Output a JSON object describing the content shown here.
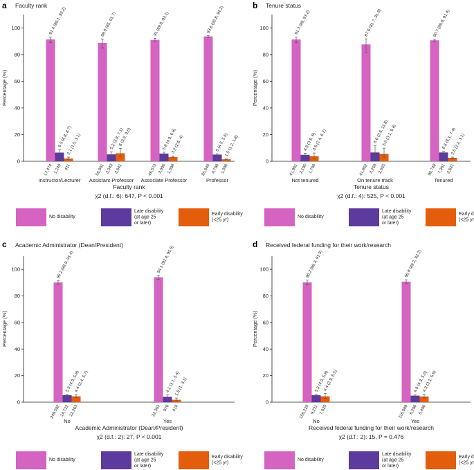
{
  "chart_data": [
    {
      "type": "bar",
      "panel": "a",
      "title": "Faculty rank",
      "ylabel": "Percentage (%)",
      "xlabel": "Faculty rank",
      "stat": "χ2 (d.f.: 6): 647, P < 0.001",
      "ylim": [
        0,
        110
      ],
      "yticks": [
        0,
        20,
        40,
        60,
        80,
        100
      ],
      "categories": [
        "Instructor/Lecturer",
        "Assistant Professor",
        "Associate Professor",
        "Professor"
      ],
      "series": [
        {
          "name": "No disability",
          "values": [
            91.4,
            88.8,
            91.0,
            93.6
          ],
          "err_low": [
            89.1,
            85.0,
            89.8,
            92.8
          ],
          "err_high": [
            93.2,
            91.7,
            92.1,
            94.2
          ],
          "labels": [
            "91.4 (89.1, 93.2)",
            "88.8 (85, 91.7)",
            "91 (89.8, 92.1)",
            "93.6 (92.8, 94.2)"
          ],
          "n": [
            "17,474",
            "56,901",
            "46,573",
            "85,848"
          ]
        },
        {
          "name": "Late disability (at age 25 or later)",
          "values": [
            6.5,
            5.2,
            5.8,
            5.0
          ],
          "err_low": [
            4.8,
            3.8,
            4.9,
            4.5
          ],
          "err_high": [
            8.7,
            7.1,
            6.8,
            5.6
          ],
          "labels": [
            "6.5 (4.8, 8.7)",
            "5.2 (3.8, 7.1)",
            "5.8 (4.9, 6.8)",
            "5 (4.5, 5.6)"
          ],
          "n": [
            "1,240",
            "3,343",
            "3,096",
            "4,790"
          ]
        },
        {
          "name": "Early disability (<25 yr)",
          "values": [
            2.1,
            6.0,
            3.2,
            1.5
          ],
          "err_low": [
            1.5,
            3.6,
            2.6,
            1.2
          ],
          "err_high": [
            3.1,
            9.6,
            4.0,
            1.8
          ],
          "labels": [
            "2.1 (1.5, 3.1)",
            "6 (3.6, 9.6)",
            "3.2 (2.6, 4)",
            "1.5 (1.2, 1.8)"
          ],
          "n": [
            "411",
            "3,841",
            "1,698",
            "1,398"
          ]
        }
      ]
    },
    {
      "type": "bar",
      "panel": "b",
      "title": "Tenure status",
      "ylabel": "Percentage (%)",
      "xlabel": "Tenure status",
      "stat": "χ2 (d.f.: 4): 525, P < 0.001",
      "ylim": [
        0,
        110
      ],
      "yticks": [
        0,
        20,
        40,
        60,
        80,
        100
      ],
      "categories": [
        "Not tenured",
        "On tenure track",
        "Tenured"
      ],
      "series": [
        {
          "name": "No disability",
          "values": [
            91.3,
            87.6,
            90.7
          ],
          "err_low": [
            89.0,
            81.7,
            89.8
          ],
          "err_high": [
            93.2,
            91.8,
            91.4
          ],
          "labels": [
            "91.3 (89, 93.2)",
            "87.6 (81.7, 91.8)",
            "90.7 (89.8, 91.4)"
          ],
          "n": [
            "41,901",
            "41,852",
            "98,748"
          ]
        },
        {
          "name": "Late disability (at age 25 or later)",
          "values": [
            4.8,
            6.6,
            6.6
          ],
          "err_low": [
            3.6,
            3.6,
            6.1
          ],
          "err_high": [
            6.0,
            11.8,
            7.4
          ],
          "labels": [
            "4.8 (3.6, 6)",
            "6.6 (3.6, 11.8)",
            "6.6 (6.1, 7.4)"
          ],
          "n": [
            "2,195",
            "3,250",
            "7,361"
          ]
        },
        {
          "name": "Early disability (<25 yr)",
          "values": [
            3.9,
            5.6,
            2.6
          ],
          "err_low": [
            2.4,
            3.1,
            2.2
          ],
          "err_high": [
            6.2,
            9.8,
            3.1
          ],
          "labels": [
            "3.9 (2.4, 6.2)",
            "5.6 (3.1, 9.8)",
            "2.6 (2.2, 3.1)"
          ],
          "n": [
            "1,790",
            "2,655",
            "2,821"
          ]
        }
      ]
    },
    {
      "type": "bar",
      "panel": "c",
      "title": "Academic Administrator (Dean/President)",
      "ylabel": "Percentage (%)",
      "xlabel": "Academic Administrator (Dean/President)",
      "stat": "χ2 (d.f.: 2): 27, P < 0.001",
      "ylim": [
        0,
        110
      ],
      "yticks": [
        0,
        20,
        40,
        60,
        80,
        100
      ],
      "categories": [
        "No",
        "Yes"
      ],
      "series": [
        {
          "name": "No disability",
          "values": [
            90.2,
            94.1
          ],
          "err_low": [
            88.9,
            92.4
          ],
          "err_high": [
            91.4,
            95.5
          ],
          "labels": [
            "90.2 (88.9, 91.4)",
            "94.1 (92.4, 95.5)"
          ],
          "n": [
            "249,592",
            "22,363"
          ]
        },
        {
          "name": "Late disability (at age 25 or later)",
          "values": [
            5.3,
            4.1
          ],
          "err_low": [
            4.9,
            3.1
          ],
          "err_high": [
            5.8,
            5.4
          ],
          "labels": [
            "5.3 (4.9, 5.8)",
            "4.1 (3.1, 5.4)"
          ],
          "n": [
            "14,722",
            "976"
          ]
        },
        {
          "name": "Early disability (<25 yr)",
          "values": [
            4.4,
            1.8
          ],
          "err_low": [
            3.4,
            1.0
          ],
          "err_high": [
            5.7,
            3.1
          ],
          "labels": [
            "4.4 (3.4, 5.7)",
            "1.8 (1, 3.1)"
          ],
          "n": [
            "12,263",
            "418"
          ]
        }
      ]
    },
    {
      "type": "bar",
      "panel": "d",
      "title": "Received federal funding for their work/research",
      "ylabel": "Percentage (%)",
      "xlabel": "Received federal funding for their work/research",
      "stat": "χ2 (d.f.: 2): 15, P = 0.476",
      "ylim": [
        0,
        110
      ],
      "yticks": [
        0,
        20,
        40,
        60,
        80,
        100
      ],
      "categories": [
        "No",
        "Yes"
      ],
      "series": [
        {
          "name": "No disability",
          "values": [
            90.2,
            90.8
          ],
          "err_low": [
            88.3,
            89.2
          ],
          "err_high": [
            91.9,
            92.2
          ],
          "labels": [
            "90.2 (88.3, 91.9)",
            "90.8 (89.2, 92.2)"
          ],
          "n": [
            "156,228",
            "116,089"
          ]
        },
        {
          "name": "Late disability (at age 25 or later)",
          "values": [
            5.3,
            4.9
          ],
          "err_low": [
            4.9,
            4.3
          ],
          "err_high": [
            5.8,
            5.6
          ],
          "labels": [
            "5.3 (4.9, 5.8)",
            "4.9 (4.3, 5.6)"
          ],
          "n": [
            "9,211",
            "6,290"
          ]
        },
        {
          "name": "Early disability (<25 yr)",
          "values": [
            4.4,
            4.3
          ],
          "err_low": [
            2.9,
            3.1
          ],
          "err_high": [
            6.5,
            5.9
          ],
          "labels": [
            "4.4 (2.9, 6.5)",
            "4.3 (3.1, 5.9)"
          ],
          "n": [
            "7,625",
            "5,496"
          ]
        }
      ]
    }
  ],
  "legend": [
    {
      "label_lines": [
        "No disability"
      ],
      "color": "#d463c1"
    },
    {
      "label_lines": [
        "Late disability",
        "(at age 25",
        "or later)"
      ],
      "color": "#5c3a9e"
    },
    {
      "label_lines": [
        "Early disability",
        "(<25 yr)"
      ],
      "color": "#e35d0c"
    }
  ],
  "colors": {
    "no_disability": "#d463c1",
    "late_disability": "#5c3a9e",
    "early_disability": "#e35d0c"
  }
}
